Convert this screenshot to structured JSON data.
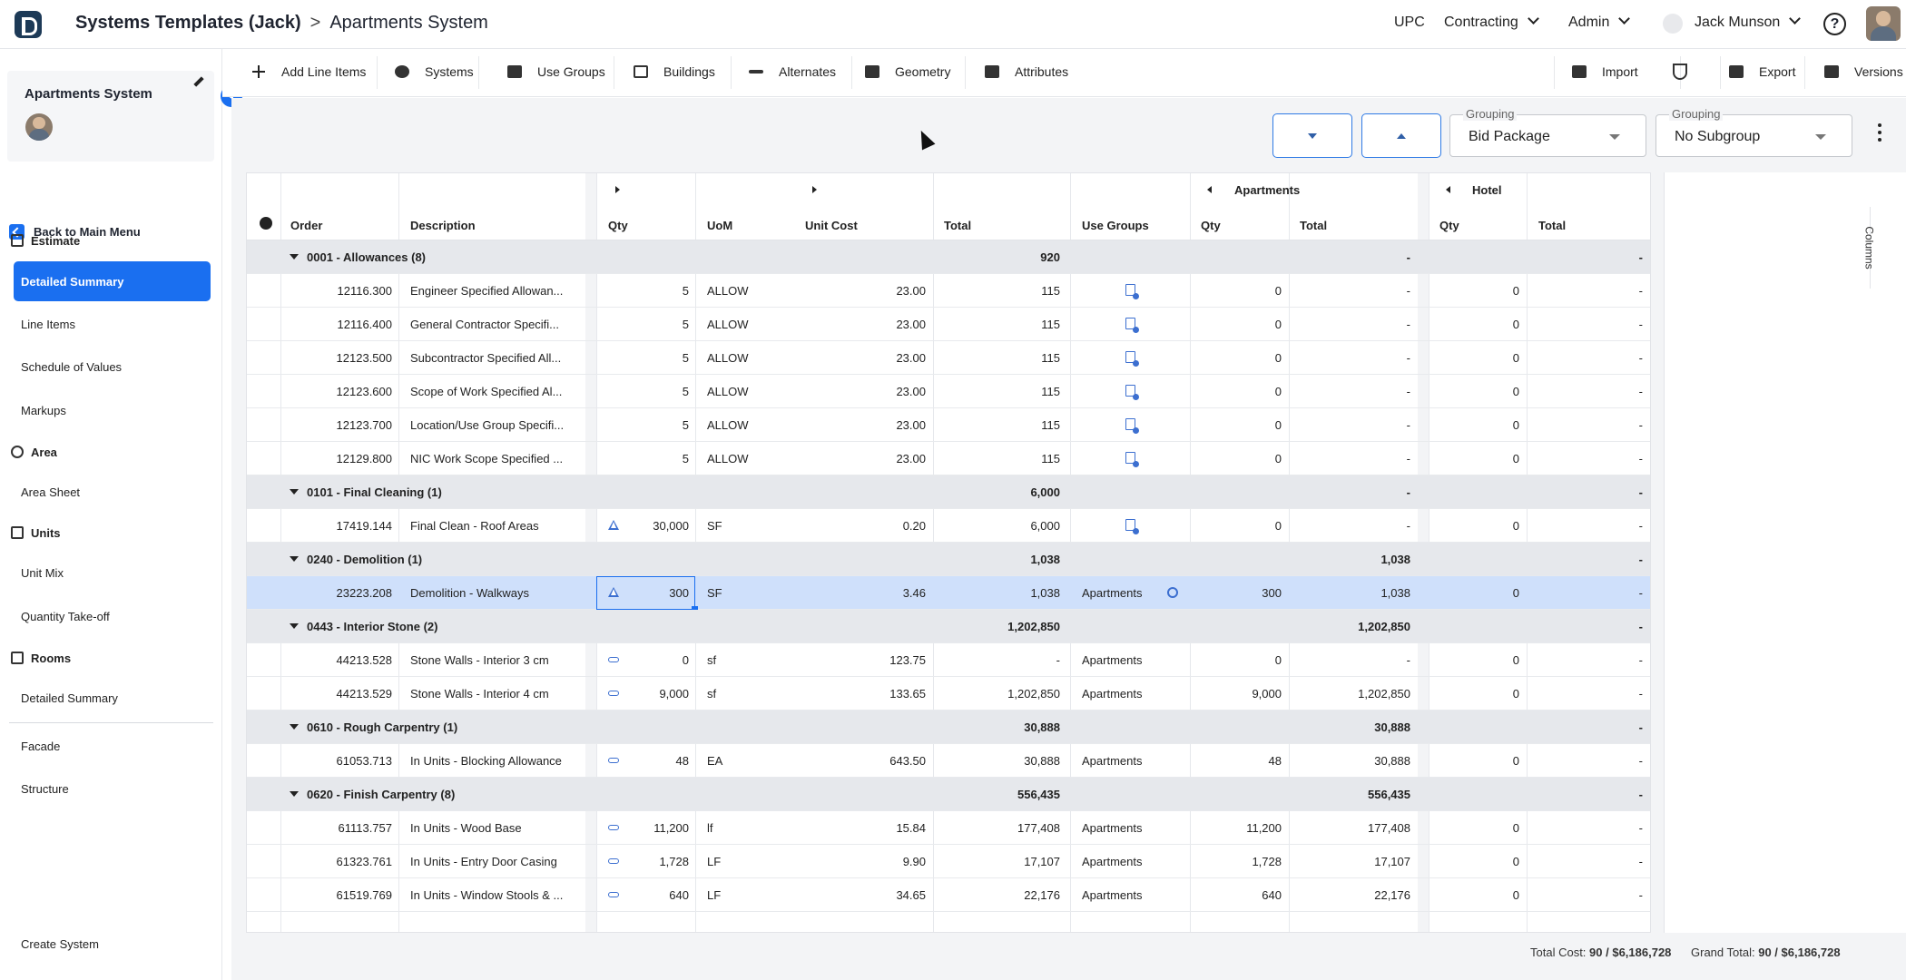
{
  "header": {
    "crumb_parent": "Systems Templates (Jack)",
    "crumb_sep": ">",
    "crumb_current": "Apartments System",
    "nav": {
      "upc": "UPC",
      "contracting": "Contracting",
      "admin": "Admin",
      "user": "Jack Munson"
    },
    "help": "?"
  },
  "sidebar": {
    "project_title": "Apartments System",
    "back": "Back to Main Menu",
    "sections": {
      "estimate": "Estimate",
      "area": "Area",
      "units": "Units",
      "rooms": "Rooms"
    },
    "items": {
      "detailed_summary": "Detailed Summary",
      "line_items": "Line Items",
      "schedule_of_values": "Schedule of Values",
      "markups": "Markups",
      "area_sheet": "Area Sheet",
      "unit_mix": "Unit Mix",
      "quantity_takeoff": "Quantity Take-off",
      "rooms_detailed_summary": "Detailed Summary",
      "facade": "Facade",
      "structure": "Structure",
      "create_system": "Create System"
    }
  },
  "toolbar": {
    "add_line_items": "Add Line Items",
    "systems": "Systems",
    "use_groups": "Use Groups",
    "buildings": "Buildings",
    "alternates": "Alternates",
    "geometry": "Geometry",
    "attributes": "Attributes",
    "import": "Import",
    "export": "Export",
    "versions": "Versions"
  },
  "grouping": {
    "label1": "Grouping",
    "value1": "Bid Package",
    "label2": "Grouping",
    "value2": "No Subgroup"
  },
  "columns_tab": "Columns",
  "grid": {
    "headers": {
      "order": "Order",
      "description": "Description",
      "qty": "Qty",
      "uom": "UoM",
      "unit_cost": "Unit Cost",
      "total": "Total",
      "use_groups": "Use Groups",
      "apt_qty": "Qty",
      "apt_total": "Total",
      "hotel_qty": "Qty",
      "hotel_total": "Total"
    },
    "bands": {
      "apartments": "Apartments",
      "hotel": "Hotel"
    },
    "rows": [
      {
        "type": "group",
        "label": "0001 - Allowances (8)",
        "total": "920",
        "apt_total": "-",
        "hotel_total": "-"
      },
      {
        "type": "line",
        "order": "12116.300",
        "desc": "Engineer Specified Allowan...",
        "qty": "5",
        "uom": "ALLOW",
        "unit_cost": "23.00",
        "total": "115",
        "use": "",
        "qicon": "",
        "apt_qty": "0",
        "apt_total": "-",
        "hotel_qty": "0",
        "hotel_total": "-"
      },
      {
        "type": "line",
        "order": "12116.400",
        "desc": "General Contractor Specifi...",
        "qty": "5",
        "uom": "ALLOW",
        "unit_cost": "23.00",
        "total": "115",
        "use": "",
        "qicon": "",
        "apt_qty": "0",
        "apt_total": "-",
        "hotel_qty": "0",
        "hotel_total": "-"
      },
      {
        "type": "line",
        "order": "12123.500",
        "desc": "Subcontractor Specified All...",
        "qty": "5",
        "uom": "ALLOW",
        "unit_cost": "23.00",
        "total": "115",
        "use": "",
        "qicon": "",
        "apt_qty": "0",
        "apt_total": "-",
        "hotel_qty": "0",
        "hotel_total": "-"
      },
      {
        "type": "line",
        "order": "12123.600",
        "desc": "Scope of Work Specified Al...",
        "qty": "5",
        "uom": "ALLOW",
        "unit_cost": "23.00",
        "total": "115",
        "use": "",
        "qicon": "",
        "apt_qty": "0",
        "apt_total": "-",
        "hotel_qty": "0",
        "hotel_total": "-"
      },
      {
        "type": "line",
        "order": "12123.700",
        "desc": "Location/Use Group Specifi...",
        "qty": "5",
        "uom": "ALLOW",
        "unit_cost": "23.00",
        "total": "115",
        "use": "",
        "qicon": "",
        "apt_qty": "0",
        "apt_total": "-",
        "hotel_qty": "0",
        "hotel_total": "-"
      },
      {
        "type": "line",
        "order": "12129.800",
        "desc": "NIC Work Scope Specified ...",
        "qty": "5",
        "uom": "ALLOW",
        "unit_cost": "23.00",
        "total": "115",
        "use": "",
        "qicon": "",
        "apt_qty": "0",
        "apt_total": "-",
        "hotel_qty": "0",
        "hotel_total": "-"
      },
      {
        "type": "group",
        "label": "0101 - Final Cleaning (1)",
        "total": "6,000",
        "apt_total": "-",
        "hotel_total": "-"
      },
      {
        "type": "line",
        "order": "17419.144",
        "desc": "Final Clean - Roof Areas",
        "qty": "30,000",
        "uom": "SF",
        "unit_cost": "0.20",
        "total": "6,000",
        "use": "",
        "qicon": "flask",
        "apt_qty": "0",
        "apt_total": "-",
        "hotel_qty": "0",
        "hotel_total": "-"
      },
      {
        "type": "group",
        "label": "0240 - Demolition (1)",
        "total": "1,038",
        "apt_total": "1,038",
        "hotel_total": "-"
      },
      {
        "type": "selected",
        "order": "23223.208",
        "desc": "Demolition - Walkways",
        "qty": "300",
        "uom": "SF",
        "unit_cost": "3.46",
        "total": "1,038",
        "use": "Apartments",
        "qicon": "flask",
        "apt_qty": "300",
        "apt_total": "1,038",
        "hotel_qty": "0",
        "hotel_total": "-"
      },
      {
        "type": "group",
        "label": "0443 - Interior Stone (2)",
        "total": "1,202,850",
        "apt_total": "1,202,850",
        "hotel_total": "-"
      },
      {
        "type": "line",
        "order": "44213.528",
        "desc": "Stone Walls - Interior 3 cm",
        "qty": "0",
        "uom": "sf",
        "unit_cost": "123.75",
        "total": "-",
        "use": "Apartments",
        "qicon": "link",
        "apt_qty": "0",
        "apt_total": "-",
        "hotel_qty": "0",
        "hotel_total": "-"
      },
      {
        "type": "line",
        "order": "44213.529",
        "desc": "Stone Walls - Interior 4 cm",
        "qty": "9,000",
        "uom": "sf",
        "unit_cost": "133.65",
        "total": "1,202,850",
        "use": "Apartments",
        "qicon": "link",
        "apt_qty": "9,000",
        "apt_total": "1,202,850",
        "hotel_qty": "0",
        "hotel_total": "-"
      },
      {
        "type": "group",
        "label": "0610 - Rough Carpentry (1)",
        "total": "30,888",
        "apt_total": "30,888",
        "hotel_total": "-"
      },
      {
        "type": "line",
        "order": "61053.713",
        "desc": "In Units - Blocking Allowance",
        "qty": "48",
        "uom": "EA",
        "unit_cost": "643.50",
        "total": "30,888",
        "use": "Apartments",
        "qicon": "link",
        "apt_qty": "48",
        "apt_total": "30,888",
        "hotel_qty": "0",
        "hotel_total": "-"
      },
      {
        "type": "group",
        "label": "0620 - Finish Carpentry (8)",
        "total": "556,435",
        "apt_total": "556,435",
        "hotel_total": "-"
      },
      {
        "type": "line",
        "order": "61113.757",
        "desc": "In Units - Wood Base",
        "qty": "11,200",
        "uom": "lf",
        "unit_cost": "15.84",
        "total": "177,408",
        "use": "Apartments",
        "qicon": "link",
        "apt_qty": "11,200",
        "apt_total": "177,408",
        "hotel_qty": "0",
        "hotel_total": "-"
      },
      {
        "type": "line",
        "order": "61323.761",
        "desc": "In Units - Entry Door Casing",
        "qty": "1,728",
        "uom": "LF",
        "unit_cost": "9.90",
        "total": "17,107",
        "use": "Apartments",
        "qicon": "link",
        "apt_qty": "1,728",
        "apt_total": "17,107",
        "hotel_qty": "0",
        "hotel_total": "-"
      },
      {
        "type": "line",
        "order": "61519.769",
        "desc": "In Units - Window Stools & ...",
        "qty": "640",
        "uom": "LF",
        "unit_cost": "34.65",
        "total": "22,176",
        "use": "Apartments",
        "qicon": "link",
        "apt_qty": "640",
        "apt_total": "22,176",
        "hotel_qty": "0",
        "hotel_total": "-"
      }
    ]
  },
  "footer": {
    "total_cost_label": "Total Cost:",
    "total_cost_value": "90 / $6,186,728",
    "grand_total_label": "Grand Total:",
    "grand_total_value": "90 / $6,186,728"
  },
  "colors": {
    "accent": "#1a6ff0",
    "selected_row": "#cfe0fb",
    "group_row": "#e6e8ec"
  }
}
